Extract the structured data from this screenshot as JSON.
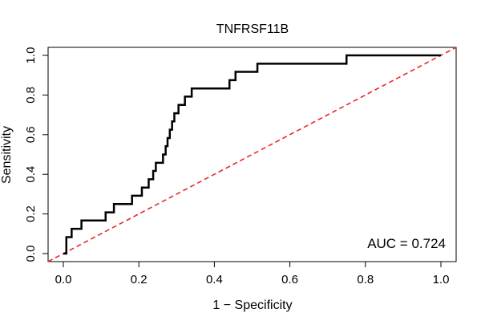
{
  "chart_data": {
    "type": "line",
    "title": "TNFRSF11B",
    "xlabel": "1 − Specificity",
    "ylabel": "Sensitivity",
    "xlim": [
      0,
      1
    ],
    "ylim": [
      0,
      1
    ],
    "x_ticks": [
      "0.0",
      "0.2",
      "0.4",
      "0.6",
      "0.8",
      "1.0"
    ],
    "y_ticks": [
      "0.0",
      "0.2",
      "0.4",
      "0.6",
      "0.8",
      "1.0"
    ],
    "annotation": "AUC = 0.724",
    "grid": false,
    "series": [
      {
        "name": "ROC curve",
        "color": "#000000",
        "style": "solid",
        "x": [
          0,
          0.008,
          0.008,
          0.022,
          0.022,
          0.048,
          0.048,
          0.112,
          0.112,
          0.134,
          0.134,
          0.182,
          0.182,
          0.208,
          0.208,
          0.226,
          0.226,
          0.238,
          0.238,
          0.245,
          0.245,
          0.264,
          0.264,
          0.271,
          0.271,
          0.276,
          0.276,
          0.282,
          0.282,
          0.288,
          0.288,
          0.294,
          0.294,
          0.305,
          0.305,
          0.322,
          0.322,
          0.34,
          0.34,
          0.44,
          0.44,
          0.456,
          0.456,
          0.514,
          0.514,
          0.668,
          0.668,
          0.75,
          0.75,
          1.0
        ],
        "y": [
          0,
          0,
          0.083,
          0.083,
          0.125,
          0.125,
          0.167,
          0.167,
          0.208,
          0.208,
          0.25,
          0.25,
          0.292,
          0.292,
          0.333,
          0.333,
          0.375,
          0.375,
          0.417,
          0.417,
          0.458,
          0.458,
          0.5,
          0.5,
          0.542,
          0.542,
          0.583,
          0.583,
          0.625,
          0.625,
          0.667,
          0.667,
          0.708,
          0.708,
          0.75,
          0.75,
          0.792,
          0.792,
          0.833,
          0.833,
          0.875,
          0.875,
          0.917,
          0.917,
          0.958,
          0.958,
          0.958,
          0.958,
          1.0,
          1.0
        ]
      },
      {
        "name": "Reference line",
        "color": "#e8282b",
        "style": "dashed",
        "x": [
          0,
          1
        ],
        "y": [
          0,
          1
        ]
      }
    ]
  }
}
